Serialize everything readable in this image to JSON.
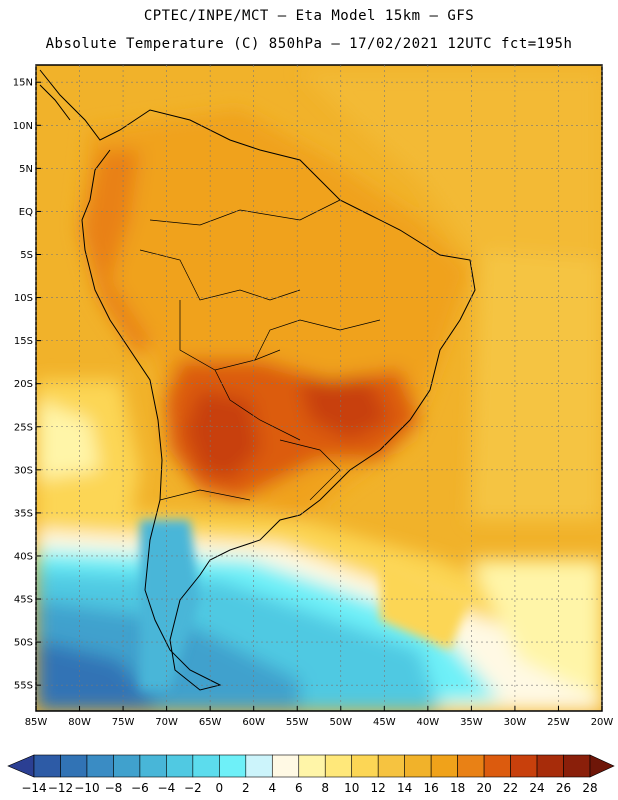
{
  "header": {
    "line1": "CPTEC/INPE/MCT –  Eta Model 15km – GFS",
    "line2": "Absolute Temperature (C) 850hPa – 17/02/2021 12UTC fct=195h"
  },
  "map": {
    "lat_labels": [
      "15N",
      "10N",
      "5N",
      "EQ",
      "5S",
      "10S",
      "15S",
      "20S",
      "25S",
      "30S",
      "35S",
      "40S",
      "45S",
      "50S",
      "55S"
    ],
    "lon_labels": [
      "85W",
      "80W",
      "75W",
      "70W",
      "65W",
      "60W",
      "55W",
      "50W",
      "45W",
      "40W",
      "35W",
      "30W",
      "25W",
      "20W"
    ],
    "lat_range": [
      17,
      -58
    ],
    "lon_range": [
      -85,
      -20
    ]
  },
  "colorbar": {
    "labels": [
      "-14",
      "-12",
      "-10",
      "-8",
      "-6",
      "-4",
      "-2",
      "0",
      "2",
      "4",
      "6",
      "8",
      "10",
      "12",
      "14",
      "16",
      "18",
      "20",
      "22",
      "24",
      "26",
      "28"
    ],
    "colors": [
      "#2b3f93",
      "#2d5ba6",
      "#3173b5",
      "#3a8cc4",
      "#40a1cd",
      "#48b6d8",
      "#50c9e2",
      "#5cdced",
      "#6ef0f8",
      "#ccf4fb",
      "#fff9e4",
      "#fff5a8",
      "#ffe87a",
      "#fcd655",
      "#f6c340",
      "#f1b22a",
      "#f0a21a",
      "#e98115",
      "#dc5b0e",
      "#c8400c",
      "#a72c0a",
      "#8a1f0a",
      "#6e1608"
    ]
  }
}
